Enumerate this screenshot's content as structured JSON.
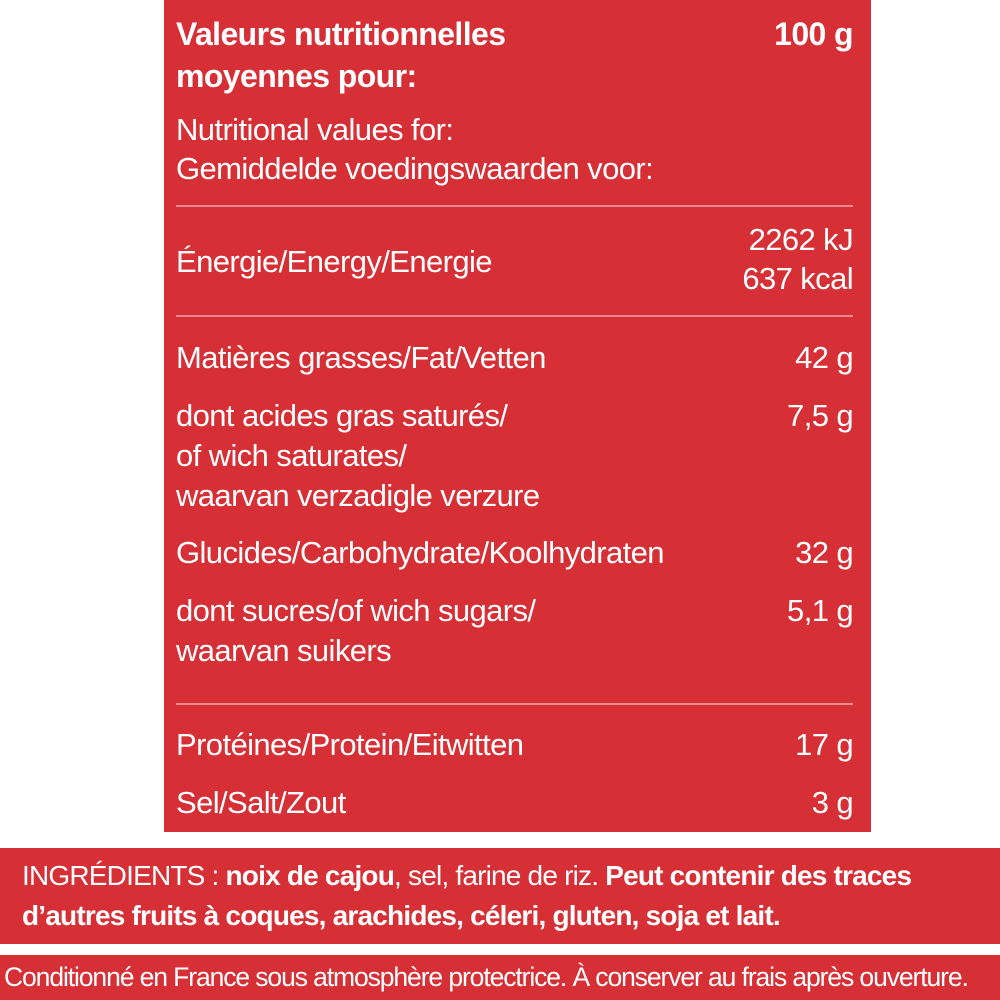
{
  "table": {
    "header": {
      "title_line1": "Valeurs nutritionnelles",
      "title_line2": "moyennes pour:",
      "per": "100 g",
      "sub_line1": "Nutritional values for:",
      "sub_line2": "Gemiddelde voedingswaarden voor:"
    },
    "energy": {
      "label": "Énergie/Energy/Energie",
      "kj": "2262 kJ",
      "kcal": "637 kcal"
    },
    "fat": {
      "label": "Matières grasses/Fat/Vetten",
      "value": "42 g"
    },
    "saturates": {
      "line1": "dont acides gras saturés/",
      "line2": "of wich saturates/",
      "line3": "waarvan verzadigle verzure",
      "value": "7,5 g"
    },
    "carbs": {
      "label": "Glucides/Carbohydrate/Koolhydraten",
      "value": "32 g"
    },
    "sugars": {
      "line1": "dont sucres/of wich sugars/",
      "line2": "waarvan suikers",
      "value": "5,1 g"
    },
    "protein": {
      "label": "Protéines/Protein/Eitwitten",
      "value": "17 g"
    },
    "salt": {
      "label": "Sel/Salt/Zout",
      "value": "3 g"
    }
  },
  "ingredients": {
    "prefix": "INGRÉDIENTS : ",
    "nuts": "noix de cajou",
    "rest": ", sel, farine de riz. ",
    "warning_line1": "Peut contenir des traces",
    "warning_line2": "d’autres fruits à coques, arachides, céleri, gluten, soja et lait."
  },
  "footer": {
    "text": "Conditionné en France sous atmosphère protectrice. À conserver au frais après ouverture."
  },
  "colors": {
    "panel_red": "#d62f36",
    "text": "#ffffff",
    "divider": "#eb8a8e"
  }
}
